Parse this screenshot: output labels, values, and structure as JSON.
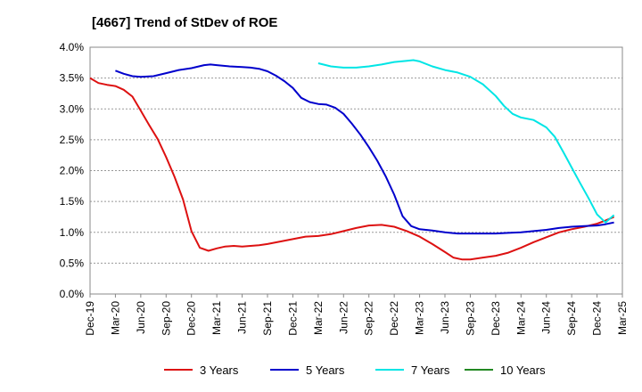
{
  "chart_data": {
    "type": "line",
    "title": "[4667]  Trend of StDev of ROE",
    "xlabel": "",
    "ylabel": "",
    "ylim": [
      0,
      4.0
    ],
    "y_ticks": [
      "0.0%",
      "0.5%",
      "1.0%",
      "1.5%",
      "2.0%",
      "2.5%",
      "3.0%",
      "3.5%",
      "4.0%"
    ],
    "x_ticks": [
      "Dec-19",
      "Mar-20",
      "Jun-20",
      "Sep-20",
      "Dec-20",
      "Mar-21",
      "Jun-21",
      "Sep-21",
      "Dec-21",
      "Mar-22",
      "Jun-22",
      "Sep-22",
      "Dec-22",
      "Mar-23",
      "Jun-23",
      "Sep-23",
      "Dec-23",
      "Mar-24",
      "Jun-24",
      "Sep-24",
      "Dec-24",
      "Mar-25"
    ],
    "grid": "horizontal",
    "legend_position": "bottom",
    "series": [
      {
        "name": "3 Years",
        "color": "#dd1111",
        "points": [
          [
            0,
            3.5
          ],
          [
            0.33,
            3.42
          ],
          [
            0.67,
            3.39
          ],
          [
            1.0,
            3.37
          ],
          [
            1.33,
            3.31
          ],
          [
            1.67,
            3.2
          ],
          [
            2.0,
            2.97
          ],
          [
            2.33,
            2.74
          ],
          [
            2.67,
            2.51
          ],
          [
            3.0,
            2.22
          ],
          [
            3.33,
            1.9
          ],
          [
            3.67,
            1.53
          ],
          [
            4.0,
            1.02
          ],
          [
            4.33,
            0.75
          ],
          [
            4.67,
            0.7
          ],
          [
            5.0,
            0.74
          ],
          [
            5.33,
            0.77
          ],
          [
            5.67,
            0.78
          ],
          [
            6.0,
            0.77
          ],
          [
            6.33,
            0.78
          ],
          [
            6.67,
            0.79
          ],
          [
            7.0,
            0.81
          ],
          [
            7.5,
            0.85
          ],
          [
            8.0,
            0.89
          ],
          [
            8.5,
            0.93
          ],
          [
            9.0,
            0.94
          ],
          [
            9.5,
            0.97
          ],
          [
            10.0,
            1.02
          ],
          [
            10.5,
            1.07
          ],
          [
            11.0,
            1.11
          ],
          [
            11.5,
            1.12
          ],
          [
            12.0,
            1.09
          ],
          [
            12.5,
            1.02
          ],
          [
            13.0,
            0.93
          ],
          [
            13.5,
            0.81
          ],
          [
            14.0,
            0.68
          ],
          [
            14.33,
            0.59
          ],
          [
            14.67,
            0.56
          ],
          [
            15.0,
            0.56
          ],
          [
            15.5,
            0.59
          ],
          [
            16.0,
            0.62
          ],
          [
            16.5,
            0.67
          ],
          [
            17.0,
            0.75
          ],
          [
            17.5,
            0.84
          ],
          [
            18.0,
            0.92
          ],
          [
            18.5,
            1.0
          ],
          [
            19.0,
            1.05
          ],
          [
            19.5,
            1.09
          ],
          [
            20.0,
            1.14
          ],
          [
            20.33,
            1.19
          ],
          [
            20.67,
            1.25
          ]
        ]
      },
      {
        "name": "5 Years",
        "color": "#0000cc",
        "points": [
          [
            1.0,
            3.62
          ],
          [
            1.33,
            3.57
          ],
          [
            1.67,
            3.53
          ],
          [
            2.0,
            3.52
          ],
          [
            2.5,
            3.53
          ],
          [
            3.0,
            3.58
          ],
          [
            3.5,
            3.63
          ],
          [
            4.0,
            3.66
          ],
          [
            4.5,
            3.71
          ],
          [
            4.75,
            3.72
          ],
          [
            5.0,
            3.71
          ],
          [
            5.5,
            3.69
          ],
          [
            6.0,
            3.68
          ],
          [
            6.33,
            3.67
          ],
          [
            6.67,
            3.65
          ],
          [
            7.0,
            3.61
          ],
          [
            7.33,
            3.54
          ],
          [
            7.67,
            3.45
          ],
          [
            8.0,
            3.34
          ],
          [
            8.33,
            3.18
          ],
          [
            8.67,
            3.11
          ],
          [
            9.0,
            3.08
          ],
          [
            9.33,
            3.07
          ],
          [
            9.67,
            3.02
          ],
          [
            10.0,
            2.92
          ],
          [
            10.33,
            2.76
          ],
          [
            10.67,
            2.58
          ],
          [
            11.0,
            2.38
          ],
          [
            11.33,
            2.16
          ],
          [
            11.67,
            1.9
          ],
          [
            12.0,
            1.61
          ],
          [
            12.33,
            1.26
          ],
          [
            12.67,
            1.1
          ],
          [
            13.0,
            1.05
          ],
          [
            13.5,
            1.03
          ],
          [
            14.0,
            1.0
          ],
          [
            14.5,
            0.98
          ],
          [
            15.0,
            0.98
          ],
          [
            15.5,
            0.98
          ],
          [
            16.0,
            0.98
          ],
          [
            16.5,
            0.99
          ],
          [
            17.0,
            1.0
          ],
          [
            17.5,
            1.02
          ],
          [
            18.0,
            1.04
          ],
          [
            18.5,
            1.07
          ],
          [
            19.0,
            1.09
          ],
          [
            19.5,
            1.1
          ],
          [
            20.0,
            1.11
          ],
          [
            20.33,
            1.13
          ],
          [
            20.67,
            1.16
          ]
        ]
      },
      {
        "name": "7 Years",
        "color": "#00e5e5",
        "points": [
          [
            9.0,
            3.74
          ],
          [
            9.5,
            3.69
          ],
          [
            10.0,
            3.67
          ],
          [
            10.5,
            3.67
          ],
          [
            11.0,
            3.69
          ],
          [
            11.5,
            3.72
          ],
          [
            12.0,
            3.76
          ],
          [
            12.5,
            3.78
          ],
          [
            12.75,
            3.79
          ],
          [
            13.0,
            3.77
          ],
          [
            13.5,
            3.69
          ],
          [
            14.0,
            3.63
          ],
          [
            14.5,
            3.59
          ],
          [
            15.0,
            3.52
          ],
          [
            15.5,
            3.4
          ],
          [
            16.0,
            3.21
          ],
          [
            16.33,
            3.05
          ],
          [
            16.67,
            2.92
          ],
          [
            17.0,
            2.86
          ],
          [
            17.5,
            2.82
          ],
          [
            18.0,
            2.7
          ],
          [
            18.33,
            2.55
          ],
          [
            18.67,
            2.3
          ],
          [
            19.0,
            2.05
          ],
          [
            19.33,
            1.8
          ],
          [
            19.67,
            1.55
          ],
          [
            20.0,
            1.29
          ],
          [
            20.33,
            1.16
          ],
          [
            20.67,
            1.28
          ]
        ]
      },
      {
        "name": "10 Years",
        "color": "#228822",
        "points": []
      }
    ]
  }
}
